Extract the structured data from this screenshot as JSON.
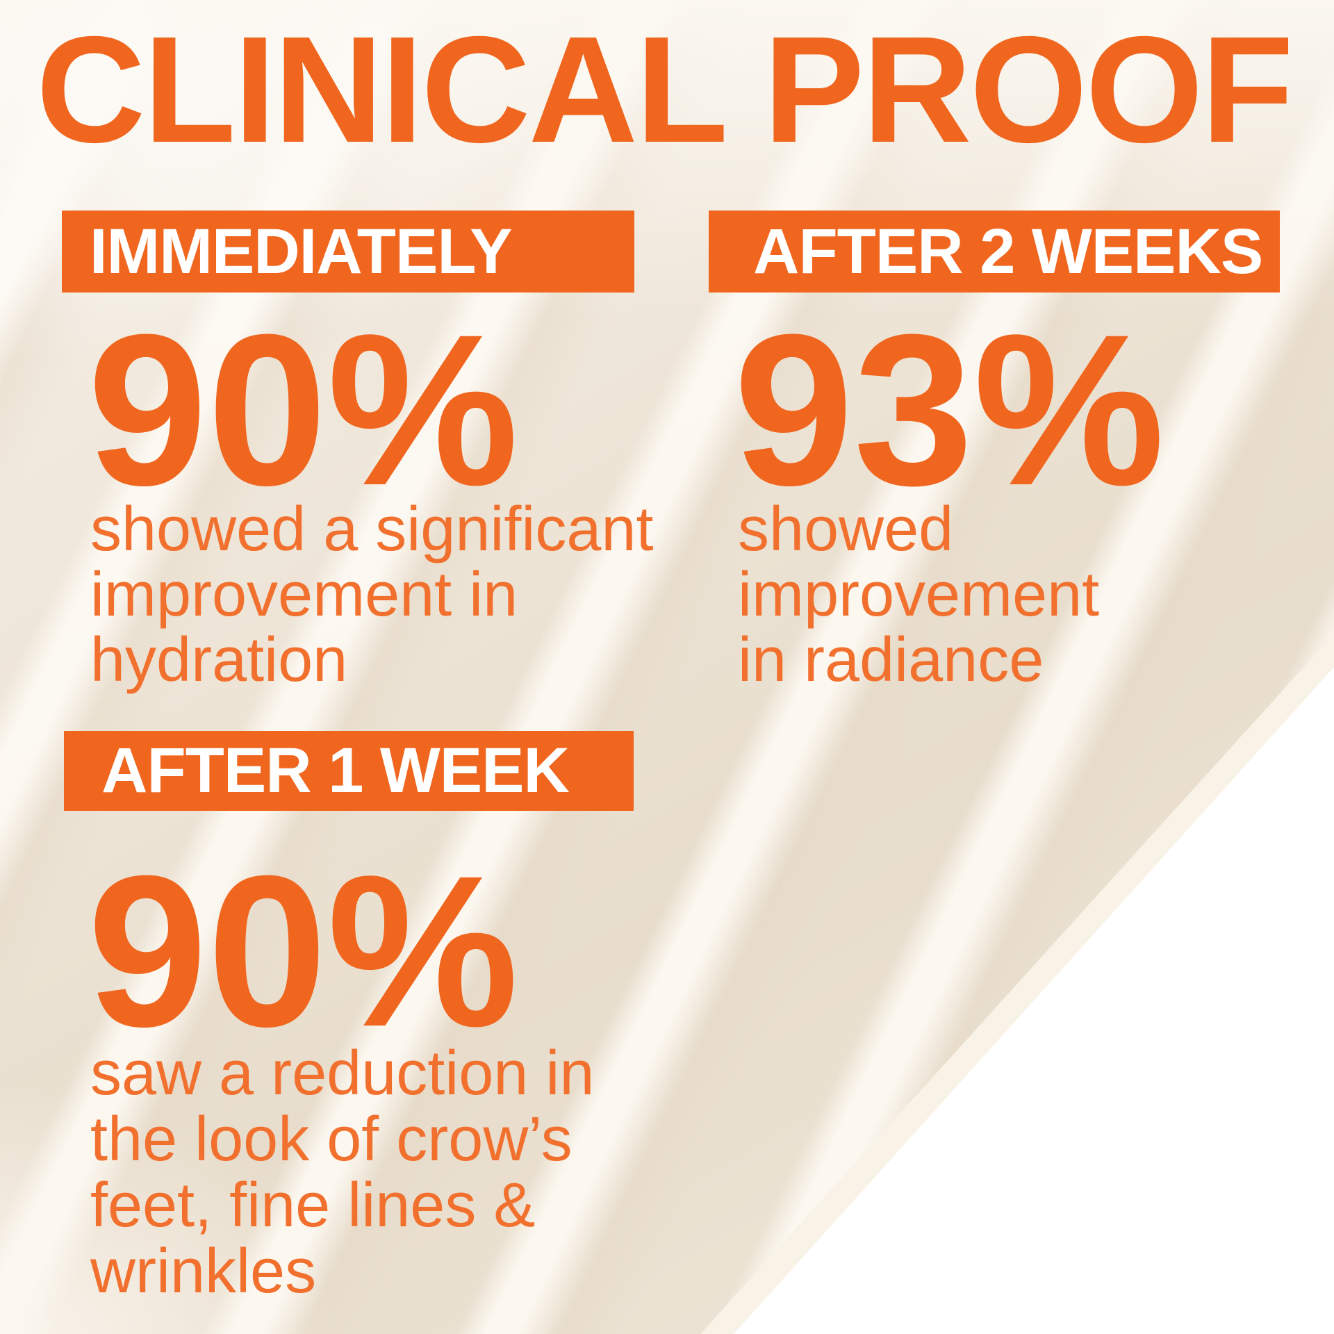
{
  "title": "CLINICAL PROOF",
  "colors": {
    "orange": "#F0661F",
    "banner_text": "#FFFFFF",
    "background_cream": "#EFE6D8",
    "background_white": "#FFFFFF"
  },
  "stats": [
    {
      "label": "IMMEDIATELY",
      "value": "90%",
      "description": "showed a significant improvement in hydration",
      "desc_lines": [
        "showed a significant",
        "improvement in",
        "hydration"
      ]
    },
    {
      "label": "AFTER 2 WEEKS",
      "value": "93%",
      "description": "showed improvement in radiance",
      "desc_lines": [
        "showed",
        "improvement",
        "in radiance"
      ]
    },
    {
      "label": "AFTER 1 WEEK",
      "value": "90%",
      "description": "saw a reduction in the look of crow’s feet, fine lines & wrinkles",
      "desc_lines": [
        "saw a reduction in",
        "the look of crow’s",
        "feet, fine lines &",
        "wrinkles"
      ]
    }
  ]
}
